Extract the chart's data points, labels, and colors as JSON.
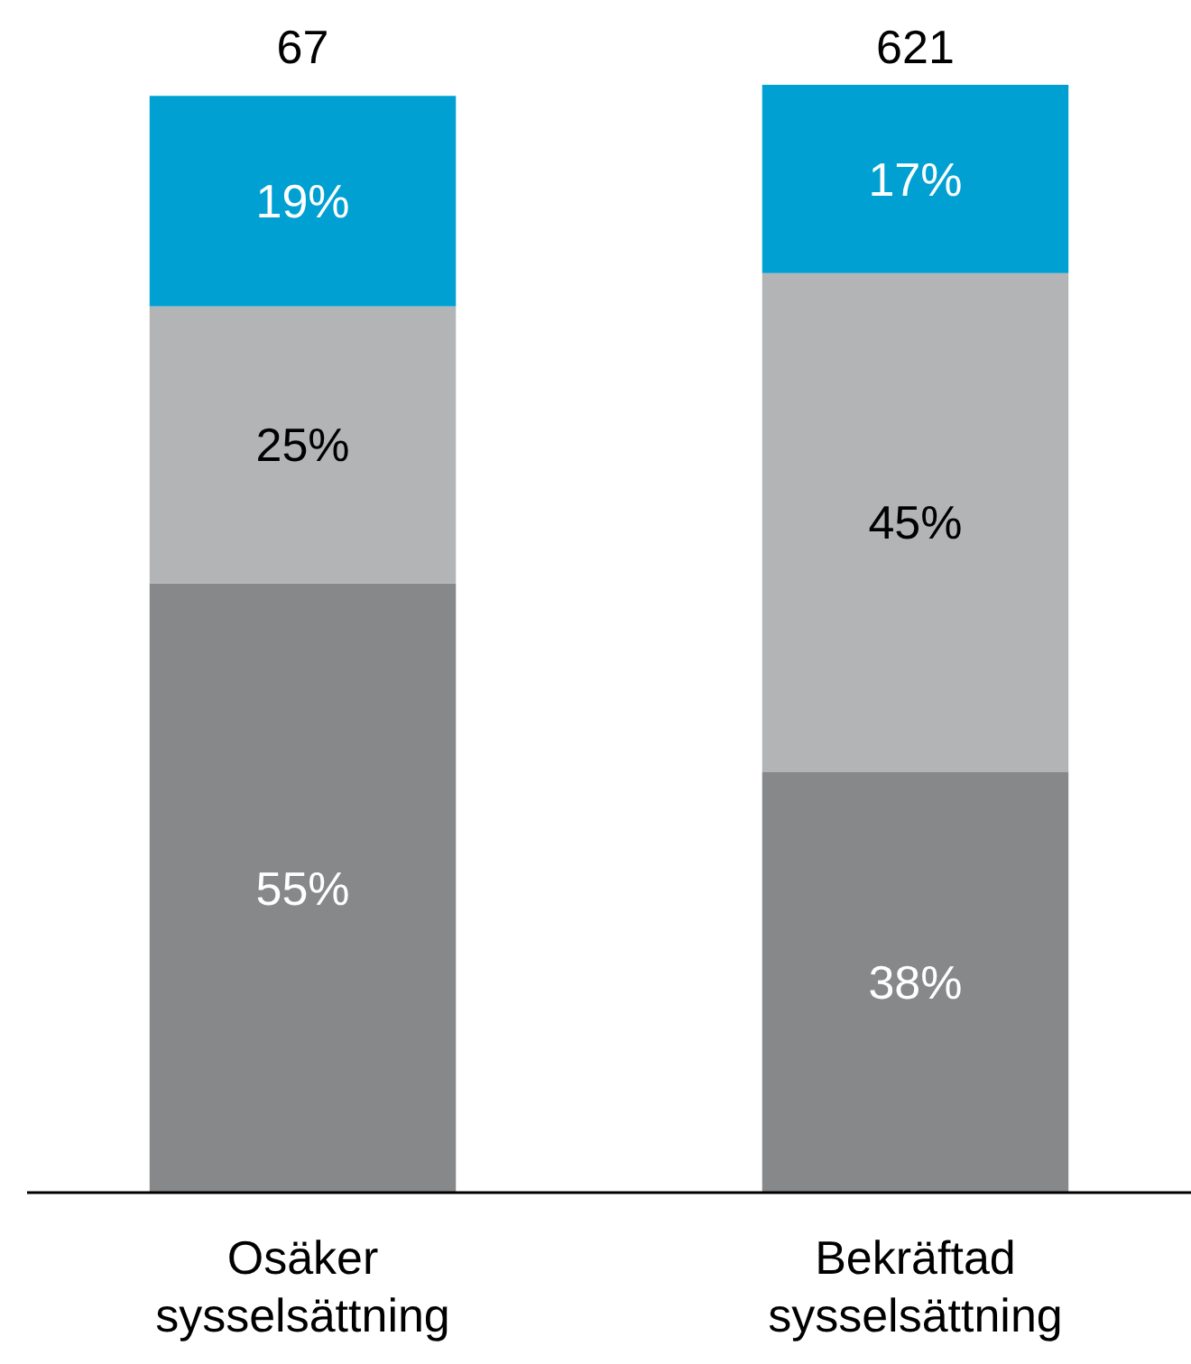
{
  "chart_data": {
    "type": "bar",
    "stacked": true,
    "categories": [
      "Osäker sysselsättning",
      "Bekräftad sysselsättning"
    ],
    "series": [
      {
        "color": "#87888a",
        "values": [
          55,
          38
        ],
        "value_labels": [
          "55%",
          "38%"
        ]
      },
      {
        "color": "#b3b4b6",
        "values": [
          25,
          45
        ],
        "value_labels": [
          "25%",
          "45%"
        ]
      },
      {
        "color": "#00a0d2",
        "values": [
          19,
          17
        ],
        "value_labels": [
          "19%",
          "17%"
        ]
      }
    ],
    "annotations": [
      "67",
      "621"
    ],
    "ylim": [
      0,
      100
    ],
    "tick_labels": "x",
    "grid": false
  }
}
